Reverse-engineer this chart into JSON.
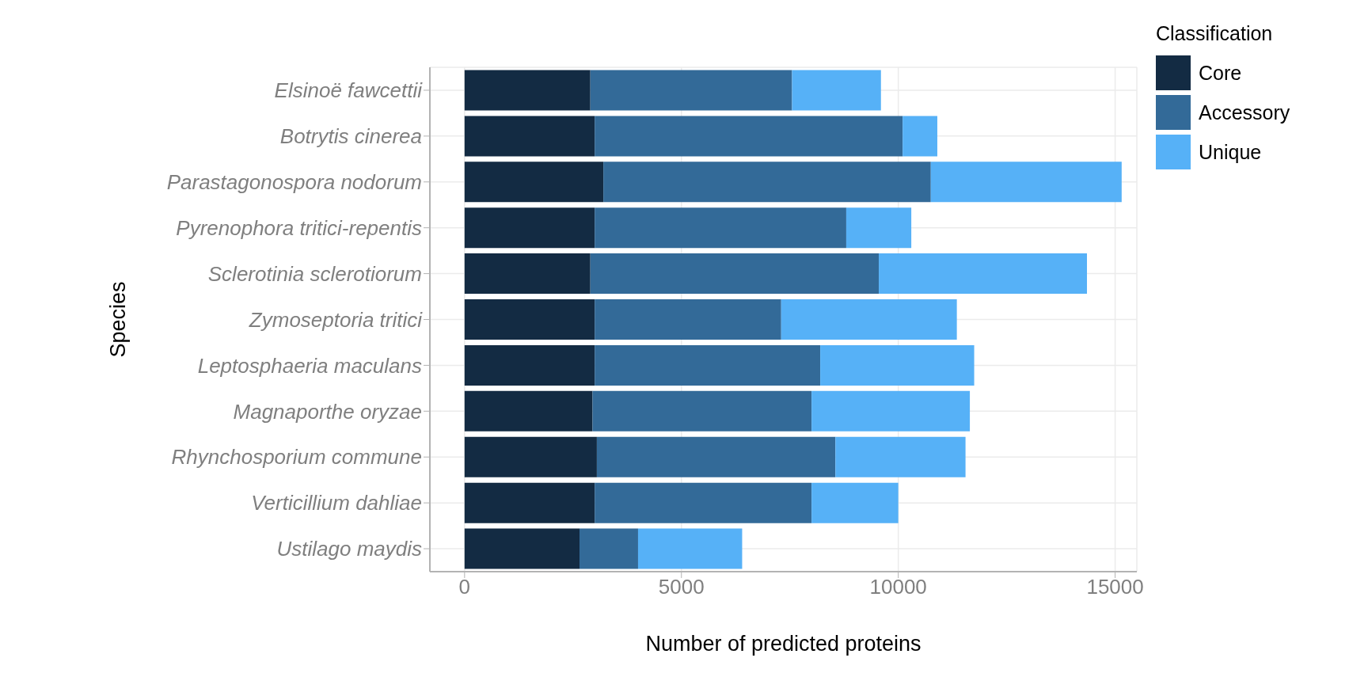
{
  "chart_data": {
    "type": "bar",
    "orientation": "horizontal",
    "stacked": true,
    "xlabel": "Number of predicted proteins",
    "ylabel": "Species",
    "legend_title": "Classification",
    "legend": "top right",
    "grid": true,
    "categories": [
      "Elsinoë fawcettii",
      "Botrytis cinerea",
      "Parastagonospora nodorum",
      "Pyrenophora tritici-repentis",
      "Sclerotinia sclerotiorum",
      "Zymoseptoria tritici",
      "Leptosphaeria maculans",
      "Magnaporthe oryzae",
      "Rhynchosporium commune",
      "Verticillium dahliae",
      "Ustilago maydis"
    ],
    "series": [
      {
        "name": "Core",
        "color": "#132b43",
        "values": [
          2900,
          3000,
          3200,
          3000,
          2900,
          3000,
          3000,
          2950,
          3050,
          3000,
          2650
        ]
      },
      {
        "name": "Accessory",
        "color": "#336a98",
        "values": [
          4650,
          7100,
          7550,
          5800,
          6650,
          4300,
          5200,
          5050,
          5500,
          5000,
          1350
        ]
      },
      {
        "name": "Unique",
        "color": "#56b1f7",
        "values": [
          2050,
          800,
          4400,
          1500,
          4800,
          4050,
          3550,
          3650,
          3000,
          2000,
          2400
        ]
      }
    ],
    "xlim": [
      -800,
      15500
    ],
    "xticks": [
      0,
      5000,
      10000,
      15000
    ]
  }
}
